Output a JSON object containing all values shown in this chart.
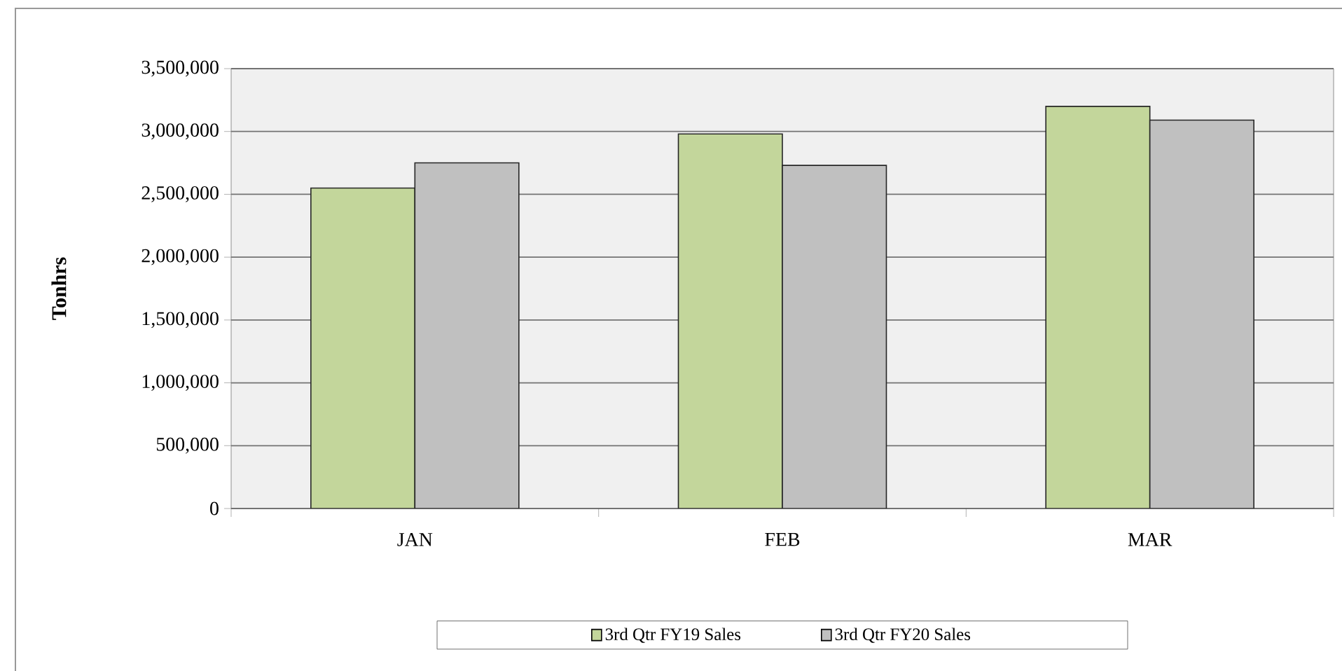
{
  "chart_data": {
    "type": "bar",
    "ylabel": "Tonhrs",
    "categories": [
      "JAN",
      "FEB",
      "MAR"
    ],
    "series": [
      {
        "name": "3rd Qtr FY19 Sales",
        "color": "#c3d69b",
        "values": [
          2550000,
          2980000,
          3200000
        ]
      },
      {
        "name": "3rd Qtr FY20 Sales",
        "color": "#c0c0c0",
        "values": [
          2750000,
          2730000,
          3090000
        ]
      }
    ],
    "ylim": [
      0,
      3500000
    ],
    "yticks": [
      0,
      {
        "value": 500000,
        "label": "500,000"
      },
      {
        "value": 1000000,
        "label": "1,000,000"
      },
      {
        "value": 1500000,
        "label": "1,500,000"
      },
      {
        "value": 2000000,
        "label": "2,000,000"
      },
      {
        "value": 2500000,
        "label": "2,500,000"
      },
      {
        "value": 3000000,
        "label": "3,000,000"
      },
      {
        "value": 3500000,
        "label": "3,500,000"
      }
    ],
    "grid": "y",
    "legend": "bottom"
  }
}
